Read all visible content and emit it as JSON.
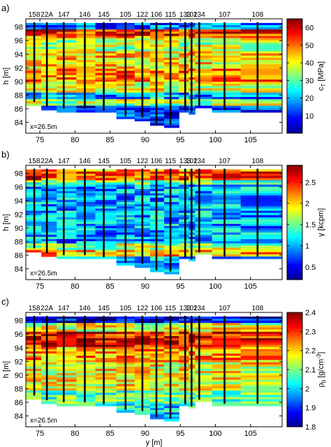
{
  "chart_data": [
    {
      "type": "heatmap",
      "panel_label": "a)",
      "xlabel": "",
      "ylabel": "h [m]",
      "xticks": [
        75,
        80,
        85,
        90,
        95,
        100,
        105
      ],
      "xlim": [
        73,
        109.5
      ],
      "yticks": [
        84,
        86,
        88,
        90,
        92,
        94,
        96,
        98
      ],
      "ylim": [
        82.4,
        99.2
      ],
      "annotation": "x=26.5m",
      "colorbar": {
        "label": "c_T [MPa]",
        "label_main": "c",
        "label_sub": "T",
        "label_rest": " [MPa]",
        "range": [
          0,
          65
        ],
        "ticks": [
          10,
          20,
          30,
          40,
          50,
          60
        ],
        "tick_labels": [
          "10",
          "20",
          "30",
          "40",
          "50",
          "60"
        ]
      },
      "boreholes": [
        {
          "name": "158",
          "y": 74.2,
          "bottom": 87.0
        },
        {
          "name": "22A",
          "y": 76.0,
          "bottom": 86.3
        },
        {
          "name": "147",
          "y": 78.4,
          "bottom": 86.0
        },
        {
          "name": "146",
          "y": 81.4,
          "bottom": 86.0
        },
        {
          "name": "145",
          "y": 84.1,
          "bottom": 85.7
        },
        {
          "name": "105",
          "y": 87.2,
          "bottom": 84.9
        },
        {
          "name": "122",
          "y": 89.6,
          "bottom": 84.7
        },
        {
          "name": "106",
          "y": 91.6,
          "bottom": 83.8
        },
        {
          "name": "115",
          "y": 93.6,
          "bottom": 83.6
        },
        {
          "name": "133",
          "y": 95.7,
          "bottom": 85.7
        },
        {
          "name": "102",
          "y": 96.6,
          "bottom": 85.4
        },
        {
          "name": "134",
          "y": 97.7,
          "bottom": 86.4
        },
        {
          "name": "107",
          "y": 101.3,
          "bottom": 85.8
        },
        {
          "name": "108",
          "y": 106.0,
          "bottom": 85.8
        }
      ]
    },
    {
      "type": "heatmap",
      "panel_label": "b)",
      "xlabel": "",
      "ylabel": "h [m]",
      "xticks": [
        75,
        80,
        85,
        90,
        95,
        100,
        105
      ],
      "xlim": [
        73,
        109.5
      ],
      "yticks": [
        84,
        86,
        88,
        90,
        92,
        94,
        96,
        98
      ],
      "ylim": [
        82.4,
        99.2
      ],
      "annotation": "x=26.5m",
      "colorbar": {
        "label": "γ [kcpm]",
        "label_main": "γ",
        "label_sub": "",
        "label_rest": " [kcpm]",
        "range": [
          0.2,
          2.9
        ],
        "ticks": [
          0.5,
          1,
          1.5,
          2,
          2.5
        ],
        "tick_labels": [
          "0.5",
          "1",
          "1.5",
          "2",
          "2.5"
        ]
      },
      "boreholes": [
        {
          "name": "158",
          "y": 74.2,
          "bottom": 87.0
        },
        {
          "name": "22A",
          "y": 76.0,
          "bottom": 86.3
        },
        {
          "name": "147",
          "y": 78.4,
          "bottom": 86.0
        },
        {
          "name": "146",
          "y": 81.4,
          "bottom": 86.0
        },
        {
          "name": "145",
          "y": 84.1,
          "bottom": 85.7
        },
        {
          "name": "105",
          "y": 87.2,
          "bottom": 84.9
        },
        {
          "name": "122",
          "y": 89.6,
          "bottom": 84.7
        },
        {
          "name": "106",
          "y": 91.6,
          "bottom": 83.8
        },
        {
          "name": "115",
          "y": 93.6,
          "bottom": 83.6
        },
        {
          "name": "133",
          "y": 95.7,
          "bottom": 85.7
        },
        {
          "name": "102",
          "y": 96.6,
          "bottom": 85.4
        },
        {
          "name": "134",
          "y": 97.7,
          "bottom": 86.4
        },
        {
          "name": "107",
          "y": 101.3,
          "bottom": 85.8
        },
        {
          "name": "108",
          "y": 106.0,
          "bottom": 85.8
        }
      ]
    },
    {
      "type": "heatmap",
      "panel_label": "c)",
      "xlabel": "y [m]",
      "ylabel": "h [m]",
      "xticks": [
        75,
        80,
        85,
        90,
        95,
        100,
        105
      ],
      "xlim": [
        73,
        109.5
      ],
      "yticks": [
        84,
        86,
        88,
        90,
        92,
        94,
        96,
        98
      ],
      "ylim": [
        82.4,
        99.2
      ],
      "annotation": "x=26.5m",
      "colorbar": {
        "label": "ρ_b [g/cm^-3]",
        "label_main": "ρ",
        "label_sub": "b",
        "label_rest": " [g/cm",
        "label_sup": "-3",
        "label_end": "]",
        "range": [
          1.8,
          2.4
        ],
        "ticks": [
          1.8,
          1.9,
          2.0,
          2.1,
          2.2,
          2.3,
          2.4
        ],
        "tick_labels": [
          "1.8",
          "1.9",
          "2",
          "2.1",
          "2.2",
          "2.3",
          "2.4"
        ]
      },
      "boreholes": [
        {
          "name": "158",
          "y": 74.2,
          "bottom": 87.0
        },
        {
          "name": "22A",
          "y": 76.0,
          "bottom": 86.3
        },
        {
          "name": "147",
          "y": 78.4,
          "bottom": 86.0
        },
        {
          "name": "146",
          "y": 81.4,
          "bottom": 86.0
        },
        {
          "name": "145",
          "y": 84.1,
          "bottom": 85.7
        },
        {
          "name": "105",
          "y": 87.2,
          "bottom": 84.9
        },
        {
          "name": "122",
          "y": 89.6,
          "bottom": 84.7
        },
        {
          "name": "106",
          "y": 91.6,
          "bottom": 83.8
        },
        {
          "name": "115",
          "y": 93.6,
          "bottom": 83.6
        },
        {
          "name": "133",
          "y": 95.7,
          "bottom": 85.7
        },
        {
          "name": "102",
          "y": 96.6,
          "bottom": 85.4
        },
        {
          "name": "134",
          "y": 97.7,
          "bottom": 86.4
        },
        {
          "name": "107",
          "y": 101.3,
          "bottom": 85.8
        },
        {
          "name": "108",
          "y": 106.0,
          "bottom": 85.8
        }
      ]
    }
  ]
}
